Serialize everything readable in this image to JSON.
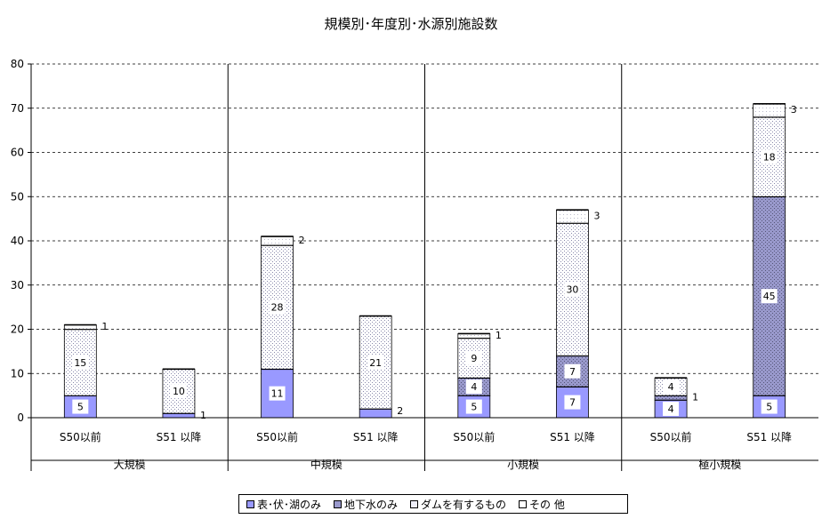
{
  "chart_data": {
    "type": "bar",
    "stacked": true,
    "title": "規模別･年度別･水源別施設数",
    "ylim": [
      0,
      80
    ],
    "yticks": [
      0,
      10,
      20,
      30,
      40,
      50,
      60,
      70,
      80
    ],
    "grid": "horizontal-dashed",
    "groups": [
      {
        "label": "大規模",
        "categories": [
          "S50以前",
          "S51 以降"
        ]
      },
      {
        "label": "中規模",
        "categories": [
          "S50以前",
          "S51 以降"
        ]
      },
      {
        "label": "小規模",
        "categories": [
          "S50以前",
          "S51 以降"
        ]
      },
      {
        "label": "極小規模",
        "categories": [
          "S50以前",
          "S51 以降"
        ]
      }
    ],
    "series": [
      {
        "name": "表･伏･湖のみ",
        "values": [
          5,
          1,
          11,
          2,
          5,
          7,
          4,
          5
        ]
      },
      {
        "name": "地下水のみ",
        "values": [
          0,
          0,
          0,
          0,
          4,
          7,
          1,
          45
        ]
      },
      {
        "name": "ダムを有するもの",
        "values": [
          15,
          10,
          28,
          21,
          9,
          30,
          4,
          18
        ]
      },
      {
        "name": "その 他",
        "values": [
          1,
          0,
          2,
          0,
          1,
          3,
          0,
          3
        ]
      }
    ],
    "data_labels": [
      [
        "5",
        "",
        "15",
        "1"
      ],
      [
        "1",
        "",
        "10",
        ""
      ],
      [
        "11",
        "",
        "28",
        "2"
      ],
      [
        "2",
        "",
        "21",
        ""
      ],
      [
        "5",
        "4",
        "9",
        "1"
      ],
      [
        "7",
        "7",
        "30",
        "3"
      ],
      [
        "4",
        "1",
        "4",
        ""
      ],
      [
        "5",
        "45",
        "18",
        "3"
      ]
    ],
    "legend_position": "bottom",
    "colors": [
      "#9999ff",
      "#9999cc",
      "#e6e6f5",
      "#ffffff"
    ]
  }
}
